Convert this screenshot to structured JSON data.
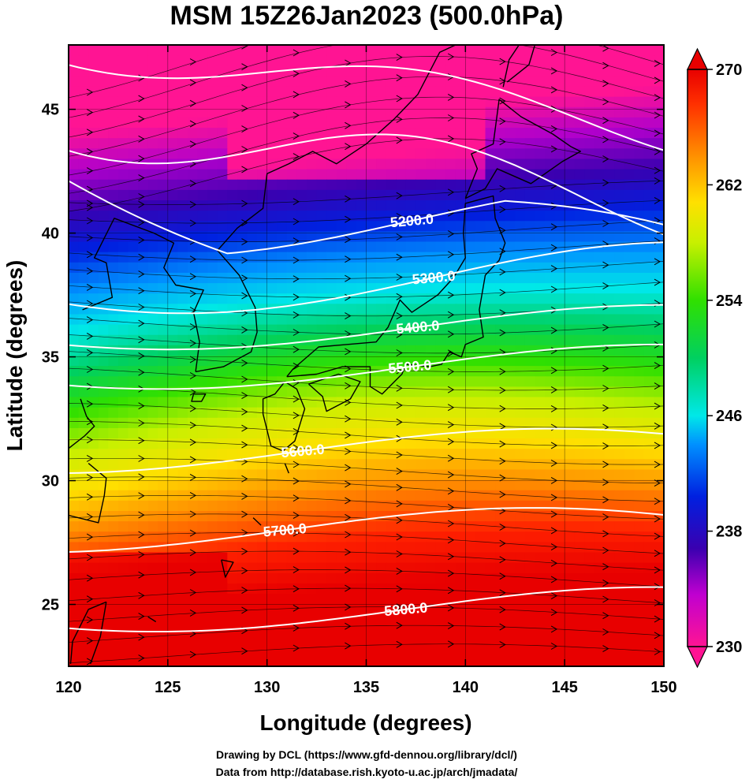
{
  "title": "MSM 15Z26Jan2023 (500.0hPa)",
  "map": {
    "lon_range": [
      120,
      150
    ],
    "lat_range": [
      22.5,
      47.6
    ],
    "x_ticks": [
      "120",
      "125",
      "130",
      "135",
      "140",
      "145",
      "150"
    ],
    "y_ticks": [
      "25",
      "30",
      "35",
      "40",
      "45"
    ],
    "xlabel": "Longitude (degrees)",
    "ylabel": "Latitude  (degrees)",
    "field": "temperature (color shading)",
    "vector_field": "wind streamlines",
    "grid": true
  },
  "colorbar": {
    "min": 230,
    "max": 270,
    "tick_labels": [
      "270",
      "262",
      "254",
      "246",
      "238",
      "230"
    ],
    "tick_values": [
      270,
      262,
      254,
      246,
      238,
      230
    ],
    "colors": [
      "#ff1493",
      "#b000cc",
      "#3a00b0",
      "#0020e0",
      "#0090ff",
      "#00e8e8",
      "#00d060",
      "#30e000",
      "#c8f000",
      "#ffe000",
      "#ff8800",
      "#ff2000",
      "#e80000"
    ]
  },
  "contours": [
    {
      "label": "5200.0",
      "value": 5200,
      "label_lon": 137.3,
      "label_lat": 40.5
    },
    {
      "label": "5300.0",
      "value": 5300,
      "label_lon": 138.4,
      "label_lat": 38.2
    },
    {
      "label": "5400.0",
      "value": 5400,
      "label_lon": 137.6,
      "label_lat": 36.2
    },
    {
      "label": "5500.0",
      "value": 5500,
      "label_lon": 137.2,
      "label_lat": 34.6
    },
    {
      "label": "5600.0",
      "value": 5600,
      "label_lon": 131.8,
      "label_lat": 31.2
    },
    {
      "label": "5700.0",
      "value": 5700,
      "label_lon": 130.9,
      "label_lat": 28.0
    },
    {
      "label": "5800.0",
      "value": 5800,
      "label_lon": 137.0,
      "label_lat": 24.8
    }
  ],
  "credits": {
    "line1": "Drawing by DCL (https://www.gfd-dennou.org/library/dcl/)",
    "line2": "Data from http://database.rish.kyoto-u.ac.jp/arch/jmadata/"
  }
}
